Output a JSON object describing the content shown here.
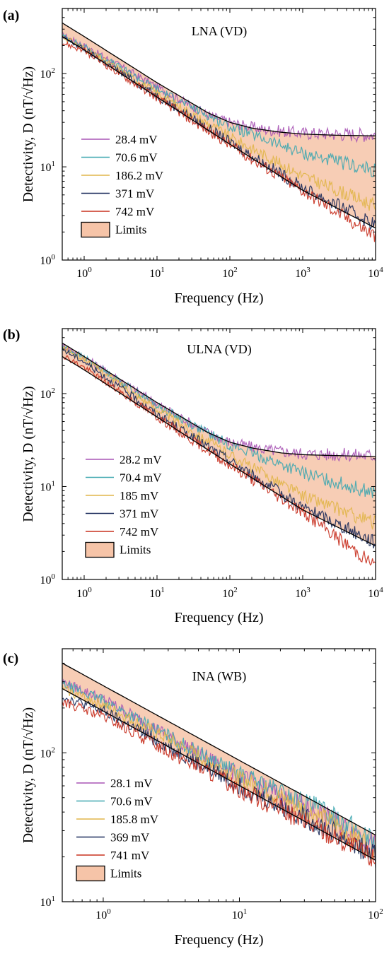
{
  "chart_data": [
    {
      "type": "line",
      "panel_label": "(a)",
      "title": "LNA (VD)",
      "xlabel": "Frequency (Hz)",
      "ylabel": "Detectivity, D (nT/√Hz)",
      "xscale": "log",
      "yscale": "log",
      "xlim": [
        0.5,
        10000
      ],
      "ylim": [
        1,
        500
      ],
      "xticks": [
        {
          "v": 1,
          "m": "10",
          "e": "0"
        },
        {
          "v": 10,
          "m": "10",
          "e": "1"
        },
        {
          "v": 100,
          "m": "10",
          "e": "2"
        },
        {
          "v": 1000,
          "m": "10",
          "e": "3"
        },
        {
          "v": 10000,
          "m": "10",
          "e": "4"
        }
      ],
      "yticks": [
        {
          "v": 1,
          "m": "10",
          "e": "0"
        },
        {
          "v": 10,
          "m": "10",
          "e": "1"
        },
        {
          "v": 100,
          "m": "10",
          "e": "2"
        }
      ],
      "legend_position": "left",
      "limits": {
        "label": "Limits",
        "color": "#f6c4a8",
        "upper": {
          "x": [
            0.5,
            1,
            10,
            50,
            100,
            200,
            500,
            1000,
            3000,
            10000
          ],
          "y": [
            350,
            250,
            80,
            38,
            30,
            26,
            23.5,
            22.5,
            21.8,
            21.5
          ]
        },
        "lower": {
          "x": [
            0.5,
            1,
            10,
            100,
            1000,
            10000
          ],
          "y": [
            250,
            180,
            56,
            17.5,
            5.6,
            2.2
          ]
        }
      },
      "series": [
        {
          "name": "28.4 mV",
          "color": "#a855b5",
          "x": [
            0.5,
            1,
            10,
            50,
            100,
            300,
            1000,
            10000
          ],
          "y": [
            260,
            200,
            72,
            36,
            30,
            25,
            23,
            22
          ]
        },
        {
          "name": "70.6 mV",
          "color": "#3fa7b0",
          "x": [
            0.5,
            1,
            10,
            100,
            1000,
            10000
          ],
          "y": [
            255,
            195,
            68,
            27,
            14,
            9
          ]
        },
        {
          "name": "186.2 mV",
          "color": "#e1b64a",
          "x": [
            0.5,
            1,
            10,
            100,
            1000,
            10000
          ],
          "y": [
            250,
            188,
            62,
            21,
            8,
            3.8
          ]
        },
        {
          "name": "371 mV",
          "color": "#1a2a5a",
          "x": [
            0.5,
            1,
            10,
            100,
            1000,
            10000
          ],
          "y": [
            245,
            182,
            58,
            18.5,
            6,
            2.4
          ]
        },
        {
          "name": "742 mV",
          "color": "#c8301f",
          "x": [
            0.5,
            1,
            10,
            100,
            1000,
            10000
          ],
          "y": [
            215,
            175,
            55,
            17,
            5.5,
            1.8
          ]
        }
      ]
    },
    {
      "type": "line",
      "panel_label": "(b)",
      "title": "ULNA (VD)",
      "xlabel": "Frequency (Hz)",
      "ylabel": "Detectivity, D (nT/√Hz)",
      "xscale": "log",
      "yscale": "log",
      "xlim": [
        0.5,
        10000
      ],
      "ylim": [
        1,
        500
      ],
      "xticks": [
        {
          "v": 1,
          "m": "10",
          "e": "0"
        },
        {
          "v": 10,
          "m": "10",
          "e": "1"
        },
        {
          "v": 100,
          "m": "10",
          "e": "2"
        },
        {
          "v": 1000,
          "m": "10",
          "e": "3"
        },
        {
          "v": 10000,
          "m": "10",
          "e": "4"
        }
      ],
      "yticks": [
        {
          "v": 1,
          "m": "10",
          "e": "0"
        },
        {
          "v": 10,
          "m": "10",
          "e": "1"
        },
        {
          "v": 100,
          "m": "10",
          "e": "2"
        }
      ],
      "legend_position": "left",
      "limits": {
        "label": "Limits",
        "color": "#f6c4a8",
        "upper": {
          "x": [
            0.5,
            1,
            10,
            50,
            100,
            200,
            500,
            1000,
            3000,
            10000
          ],
          "y": [
            350,
            250,
            80,
            38,
            30,
            26,
            23,
            22,
            21.5,
            21
          ]
        },
        "lower": {
          "x": [
            0.5,
            1,
            10,
            100,
            1000,
            10000
          ],
          "y": [
            250,
            180,
            56,
            17.5,
            5.6,
            2.3
          ]
        }
      },
      "series": [
        {
          "name": "28.2 mV",
          "color": "#a855b5",
          "x": [
            0.5,
            1,
            10,
            50,
            100,
            300,
            1000,
            10000
          ],
          "y": [
            330,
            250,
            78,
            38,
            30,
            25,
            22.5,
            21.5
          ]
        },
        {
          "name": "70.4 mV",
          "color": "#3fa7b0",
          "x": [
            0.5,
            1,
            10,
            100,
            1000,
            10000
          ],
          "y": [
            320,
            245,
            74,
            28,
            14,
            8.5
          ]
        },
        {
          "name": "185 mV",
          "color": "#e1b64a",
          "x": [
            0.5,
            1,
            10,
            100,
            1000,
            10000
          ],
          "y": [
            310,
            235,
            68,
            22,
            8,
            4
          ]
        },
        {
          "name": "371 mV",
          "color": "#1a2a5a",
          "x": [
            0.5,
            1,
            10,
            100,
            1000,
            10000
          ],
          "y": [
            300,
            220,
            60,
            19,
            6,
            2.5
          ]
        },
        {
          "name": "742 mV",
          "color": "#c8301f",
          "x": [
            0.5,
            1,
            10,
            100,
            1000,
            10000
          ],
          "y": [
            260,
            190,
            56,
            17,
            5.3,
            1.4
          ]
        }
      ]
    },
    {
      "type": "line",
      "panel_label": "(c)",
      "title": "INA (WB)",
      "xlabel": "Frequency (Hz)",
      "ylabel": "Detectivity, D (nT/√Hz)",
      "xscale": "log",
      "yscale": "log",
      "xlim": [
        0.5,
        100
      ],
      "ylim": [
        10,
        500
      ],
      "xticks": [
        {
          "v": 1,
          "m": "10",
          "e": "0"
        },
        {
          "v": 10,
          "m": "10",
          "e": "1"
        },
        {
          "v": 100,
          "m": "10",
          "e": "2"
        }
      ],
      "yticks": [
        {
          "v": 10,
          "m": "10",
          "e": "1"
        },
        {
          "v": 100,
          "m": "10",
          "e": "2"
        }
      ],
      "legend_position": "left",
      "limits": {
        "label": "Limits",
        "color": "#f6c4a8",
        "upper": {
          "x": [
            0.5,
            100
          ],
          "y": [
            400,
            28
          ]
        },
        "lower": {
          "x": [
            0.5,
            100
          ],
          "y": [
            270,
            19
          ]
        }
      },
      "series": [
        {
          "name": "28.1 mV",
          "color": "#a855b5",
          "x": [
            0.5,
            1,
            5,
            10,
            50,
            100
          ],
          "y": [
            300,
            230,
            100,
            70,
            35,
            24
          ]
        },
        {
          "name": "70.6 mV",
          "color": "#3fa7b0",
          "x": [
            0.5,
            1,
            5,
            10,
            50,
            100
          ],
          "y": [
            290,
            225,
            100,
            72,
            38,
            25
          ]
        },
        {
          "name": "185.8 mV",
          "color": "#e1b64a",
          "x": [
            0.5,
            1,
            5,
            10,
            50,
            100
          ],
          "y": [
            270,
            210,
            95,
            68,
            33,
            22
          ]
        },
        {
          "name": "369 mV",
          "color": "#1a2a5a",
          "x": [
            0.5,
            1,
            5,
            10,
            50,
            100
          ],
          "y": [
            240,
            190,
            85,
            60,
            29,
            20
          ]
        },
        {
          "name": "741 mV",
          "color": "#c8301f",
          "x": [
            0.5,
            1,
            5,
            10,
            50,
            100
          ],
          "y": [
            220,
            175,
            80,
            57,
            27,
            19
          ]
        }
      ]
    }
  ]
}
